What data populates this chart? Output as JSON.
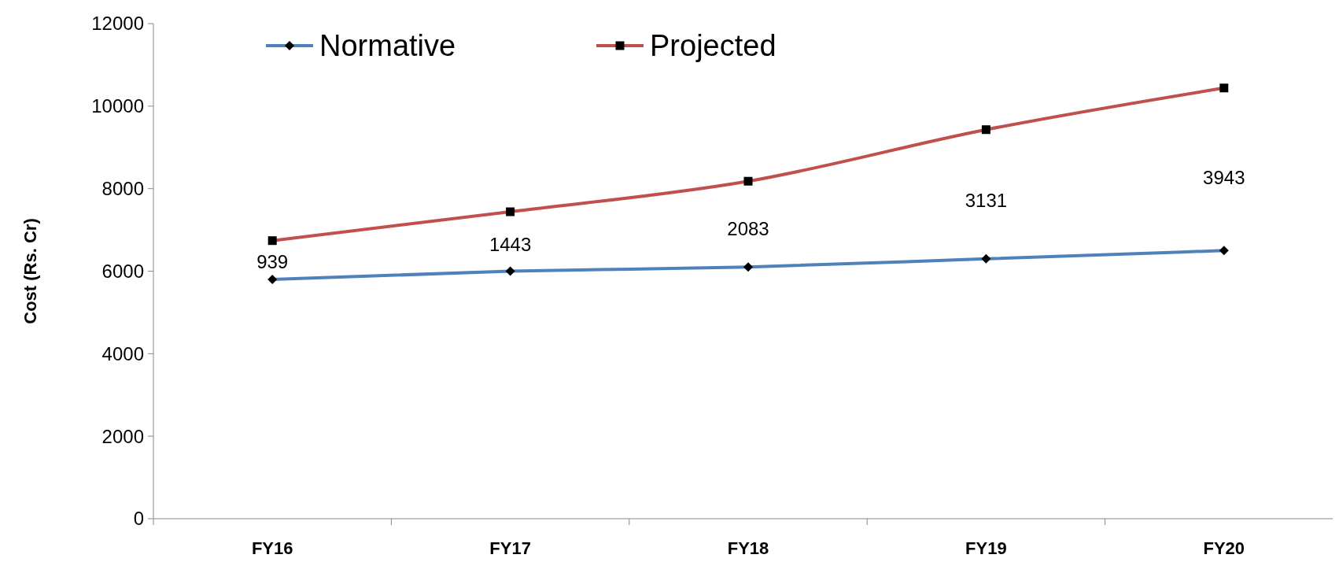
{
  "chart_data": {
    "type": "line",
    "ylabel": "Cost (Rs. Cr)",
    "categories": [
      "FY16",
      "FY17",
      "FY18",
      "FY19",
      "FY20"
    ],
    "series": [
      {
        "name": "Normative",
        "color": "#4f81bd",
        "marker": "diamond",
        "values": [
          5800,
          6000,
          6100,
          6300,
          6500
        ]
      },
      {
        "name": "Projected",
        "color": "#c0504d",
        "marker": "square",
        "values": [
          6740,
          7440,
          8180,
          9430,
          10440
        ]
      }
    ],
    "ylim": [
      0,
      12000
    ],
    "yticks": [
      0,
      2000,
      4000,
      6000,
      8000,
      10000,
      12000
    ],
    "grid": false,
    "legend": "top left",
    "annotations": [
      "939",
      "1443",
      "2083",
      "3131",
      "3943"
    ]
  }
}
